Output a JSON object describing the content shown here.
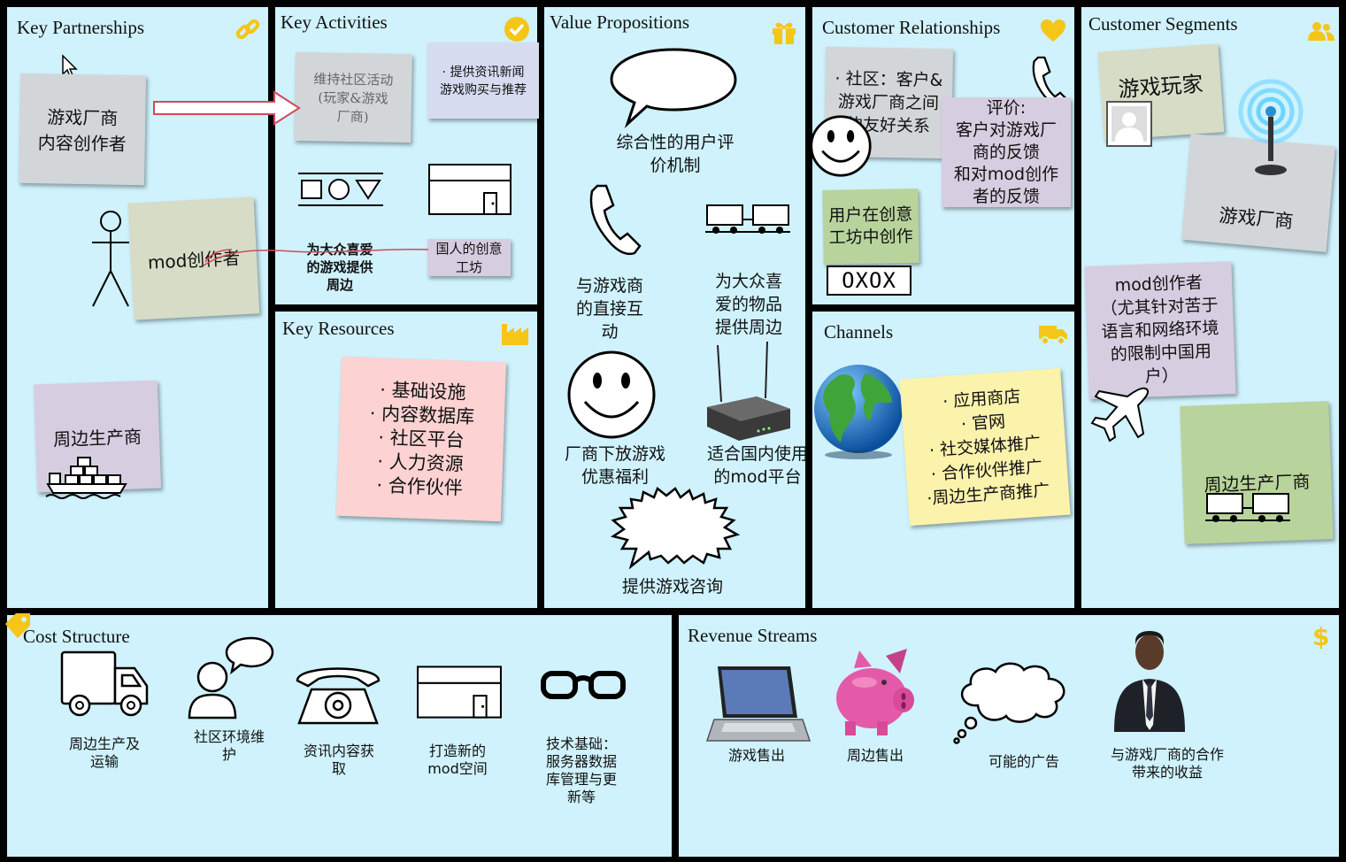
{
  "colors": {
    "cell_bg": "#cff2fc",
    "border": "#000000",
    "accent": "#f5c518",
    "gray_note": "#d3d6d9",
    "purple_note": "#d7cde0",
    "green_note": "#b8d49c",
    "pink_note": "#fcd2d2",
    "yellow_note": "#fbf2ac"
  },
  "key_partnerships": {
    "title": "Key Partnerships",
    "icon": "link-icon",
    "note1": "游戏厂商\n内容创作者",
    "note2": "mod创作者",
    "note3": "周边生产商"
  },
  "key_activities": {
    "title": "Key Activities",
    "icon": "check-circle-icon",
    "note1": "维持社区活动\n(玩家&游戏\n厂商)",
    "note2": "· 提供资讯新闻\n游戏购买与推荐",
    "text1": "为大众喜爱\n的游戏提供\n周边",
    "note3": "国人的创意\n工坊"
  },
  "key_resources": {
    "title": "Key Resources",
    "icon": "factory-icon",
    "note": "· 基础设施\n· 内容数据库\n· 社区平台\n· 人力资源\n· 合作伙伴"
  },
  "value_propositions": {
    "title": "Value Propositions",
    "icon": "gift-icon",
    "text1": "综合性的用户评\n价机制",
    "text2": "与游戏商\n的直接互\n动",
    "text3": "为大众喜\n爱的物品\n提供周边",
    "text4": "厂商下放游戏\n优惠福利",
    "text5": "适合国内使用\n的mod平台",
    "text6": "提供游戏咨询"
  },
  "customer_relationships": {
    "title": "Customer Relationships",
    "icon": "heart-icon",
    "note1": "· 社区：客户&\n游戏厂商之间\n的友好关系",
    "note2": "评价:\n客户对游戏厂\n商的反馈\n和对mod创作\n者的反馈",
    "note3": "用户在创意\n工坊中创作",
    "oxox": "OXOX"
  },
  "channels": {
    "title": "Channels",
    "icon": "truck-icon",
    "note": "· 应用商店\n· 官网\n· 社交媒体推广\n· 合作伙伴推广\n·周边生产商推广"
  },
  "customer_segments": {
    "title": "Customer Segments",
    "icon": "users-icon",
    "note1": "游戏玩家",
    "note2": "游戏厂商",
    "note3": "mod创作者\n（尤其针对苦于\n语言和网络环境\n的限制中国用\n户）",
    "note4": "周边生产厂商"
  },
  "cost_structure": {
    "title": "Cost Structure",
    "icon": "tag-icon",
    "items": [
      "周边生产及\n运输",
      "社区环境维\n护",
      "资讯内容获\n取",
      "打造新的\nmod空间",
      "技术基础：\n服务器数据\n库管理与更\n新等"
    ]
  },
  "revenue_streams": {
    "title": "Revenue Streams",
    "icon": "dollar-icon",
    "items": [
      "游戏售出",
      "周边售出",
      "可能的广告",
      "与游戏厂商的合作\n带来的收益"
    ]
  }
}
